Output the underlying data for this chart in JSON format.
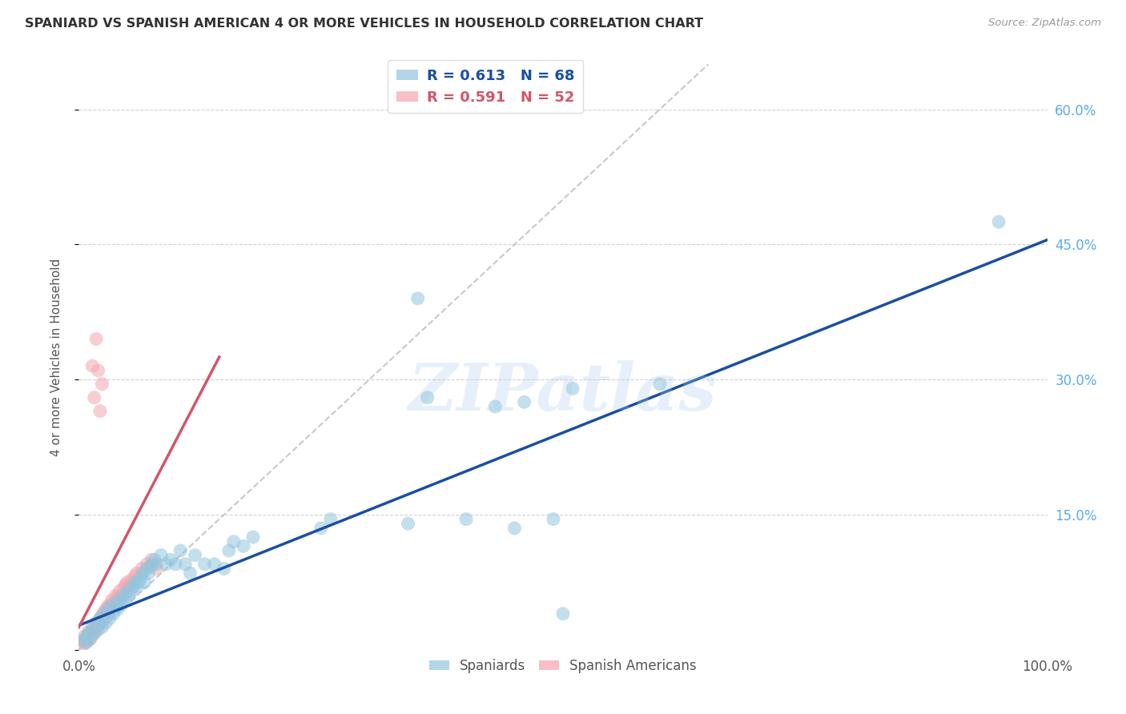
{
  "title": "SPANIARD VS SPANISH AMERICAN 4 OR MORE VEHICLES IN HOUSEHOLD CORRELATION CHART",
  "source": "Source: ZipAtlas.com",
  "ylabel": "4 or more Vehicles in Household",
  "xlim": [
    0,
    1.0
  ],
  "ylim": [
    0,
    0.65
  ],
  "ytick_positions": [
    0.0,
    0.15,
    0.3,
    0.45,
    0.6
  ],
  "yticklabels_right": [
    "",
    "15.0%",
    "30.0%",
    "45.0%",
    "60.0%"
  ],
  "r_blue": 0.613,
  "n_blue": 68,
  "r_pink": 0.591,
  "n_pink": 52,
  "legend_labels": [
    "Spaniards",
    "Spanish Americans"
  ],
  "blue_color": "#92c5de",
  "pink_color": "#f4a6b0",
  "blue_line_color": "#1a4fa0",
  "pink_line_color": "#d4546a",
  "watermark": "ZIPatlas",
  "background_color": "#ffffff",
  "grid_color": "#cccccc",
  "blue_scatter": [
    [
      0.004,
      0.01
    ],
    [
      0.006,
      0.015
    ],
    [
      0.008,
      0.008
    ],
    [
      0.01,
      0.02
    ],
    [
      0.012,
      0.012
    ],
    [
      0.014,
      0.025
    ],
    [
      0.016,
      0.018
    ],
    [
      0.018,
      0.03
    ],
    [
      0.02,
      0.022
    ],
    [
      0.022,
      0.035
    ],
    [
      0.024,
      0.025
    ],
    [
      0.026,
      0.04
    ],
    [
      0.028,
      0.03
    ],
    [
      0.03,
      0.045
    ],
    [
      0.032,
      0.035
    ],
    [
      0.034,
      0.048
    ],
    [
      0.036,
      0.04
    ],
    [
      0.038,
      0.052
    ],
    [
      0.04,
      0.045
    ],
    [
      0.042,
      0.055
    ],
    [
      0.044,
      0.05
    ],
    [
      0.046,
      0.06
    ],
    [
      0.048,
      0.055
    ],
    [
      0.05,
      0.065
    ],
    [
      0.052,
      0.06
    ],
    [
      0.054,
      0.065
    ],
    [
      0.056,
      0.07
    ],
    [
      0.058,
      0.075
    ],
    [
      0.06,
      0.07
    ],
    [
      0.062,
      0.075
    ],
    [
      0.064,
      0.08
    ],
    [
      0.066,
      0.085
    ],
    [
      0.068,
      0.075
    ],
    [
      0.07,
      0.09
    ],
    [
      0.072,
      0.085
    ],
    [
      0.074,
      0.092
    ],
    [
      0.076,
      0.095
    ],
    [
      0.078,
      0.1
    ],
    [
      0.08,
      0.095
    ],
    [
      0.085,
      0.105
    ],
    [
      0.09,
      0.095
    ],
    [
      0.095,
      0.1
    ],
    [
      0.1,
      0.095
    ],
    [
      0.105,
      0.11
    ],
    [
      0.11,
      0.095
    ],
    [
      0.115,
      0.085
    ],
    [
      0.12,
      0.105
    ],
    [
      0.13,
      0.095
    ],
    [
      0.14,
      0.095
    ],
    [
      0.15,
      0.09
    ],
    [
      0.155,
      0.11
    ],
    [
      0.16,
      0.12
    ],
    [
      0.17,
      0.115
    ],
    [
      0.18,
      0.125
    ],
    [
      0.25,
      0.135
    ],
    [
      0.26,
      0.145
    ],
    [
      0.34,
      0.14
    ],
    [
      0.35,
      0.39
    ],
    [
      0.36,
      0.28
    ],
    [
      0.4,
      0.145
    ],
    [
      0.43,
      0.27
    ],
    [
      0.45,
      0.135
    ],
    [
      0.46,
      0.275
    ],
    [
      0.49,
      0.145
    ],
    [
      0.5,
      0.04
    ],
    [
      0.51,
      0.29
    ],
    [
      0.6,
      0.295
    ],
    [
      0.95,
      0.475
    ]
  ],
  "pink_scatter": [
    [
      0.004,
      0.005
    ],
    [
      0.005,
      0.01
    ],
    [
      0.006,
      0.008
    ],
    [
      0.007,
      0.012
    ],
    [
      0.008,
      0.015
    ],
    [
      0.009,
      0.01
    ],
    [
      0.01,
      0.018
    ],
    [
      0.011,
      0.012
    ],
    [
      0.012,
      0.02
    ],
    [
      0.013,
      0.015
    ],
    [
      0.014,
      0.022
    ],
    [
      0.015,
      0.02
    ],
    [
      0.016,
      0.025
    ],
    [
      0.017,
      0.02
    ],
    [
      0.018,
      0.028
    ],
    [
      0.019,
      0.025
    ],
    [
      0.02,
      0.03
    ],
    [
      0.021,
      0.028
    ],
    [
      0.022,
      0.035
    ],
    [
      0.023,
      0.03
    ],
    [
      0.024,
      0.038
    ],
    [
      0.025,
      0.035
    ],
    [
      0.026,
      0.042
    ],
    [
      0.027,
      0.038
    ],
    [
      0.028,
      0.045
    ],
    [
      0.029,
      0.04
    ],
    [
      0.03,
      0.048
    ],
    [
      0.031,
      0.042
    ],
    [
      0.032,
      0.05
    ],
    [
      0.034,
      0.055
    ],
    [
      0.036,
      0.052
    ],
    [
      0.038,
      0.06
    ],
    [
      0.04,
      0.058
    ],
    [
      0.042,
      0.065
    ],
    [
      0.044,
      0.06
    ],
    [
      0.046,
      0.068
    ],
    [
      0.048,
      0.072
    ],
    [
      0.05,
      0.075
    ],
    [
      0.052,
      0.07
    ],
    [
      0.055,
      0.078
    ],
    [
      0.058,
      0.082
    ],
    [
      0.06,
      0.085
    ],
    [
      0.065,
      0.09
    ],
    [
      0.07,
      0.095
    ],
    [
      0.075,
      0.1
    ],
    [
      0.014,
      0.315
    ],
    [
      0.016,
      0.28
    ],
    [
      0.018,
      0.345
    ],
    [
      0.02,
      0.31
    ],
    [
      0.022,
      0.265
    ],
    [
      0.024,
      0.295
    ],
    [
      0.08,
      0.09
    ]
  ]
}
